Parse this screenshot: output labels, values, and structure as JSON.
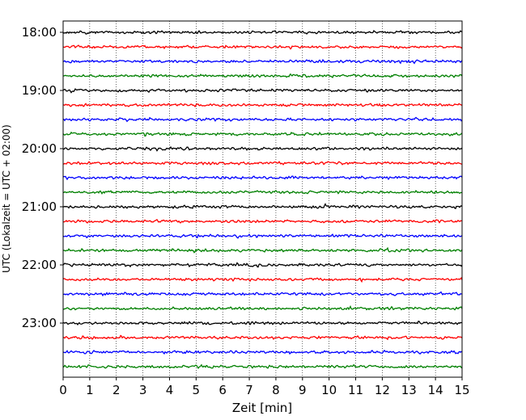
{
  "chart_data": {
    "type": "line",
    "title": "",
    "xlabel": "Zeit  [min]",
    "ylabel": "UTC (Lokalzeit = UTC + 02:00)",
    "xlim": [
      0,
      15
    ],
    "x_ticks": [
      "0",
      "1",
      "2",
      "3",
      "4",
      "5",
      "6",
      "7",
      "8",
      "9",
      "10",
      "11",
      "12",
      "13",
      "14",
      "15"
    ],
    "y_ticks": [
      "18:00",
      "19:00",
      "20:00",
      "21:00",
      "22:00",
      "23:00"
    ],
    "trace_start_times": [
      "18:00",
      "18:15",
      "18:30",
      "18:45",
      "19:00",
      "19:15",
      "19:30",
      "19:45",
      "20:00",
      "20:15",
      "20:30",
      "20:45",
      "21:00",
      "21:15",
      "21:30",
      "21:45",
      "22:00",
      "22:15",
      "22:30",
      "22:45",
      "23:00",
      "23:15",
      "23:30",
      "23:45"
    ],
    "trace_colors": [
      "#000000",
      "#ff0000",
      "#0000ff",
      "#008000"
    ],
    "trace_minutes_each": 15,
    "grid": "x-dotted",
    "legend": "none"
  }
}
